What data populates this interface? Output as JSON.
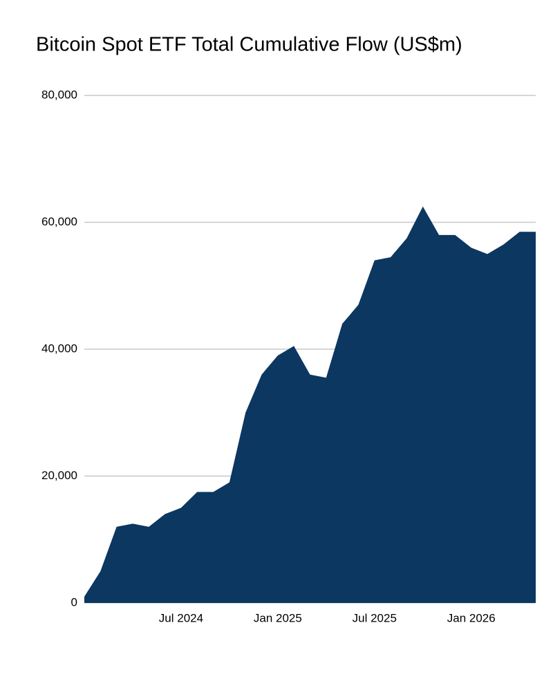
{
  "chart_data": {
    "type": "area",
    "title": "Bitcoin Spot ETF Total Cumulative Flow (US$m)",
    "color": "#0b3761",
    "grid": true,
    "x": [
      "2024-01",
      "2024-02",
      "2024-03",
      "2024-04",
      "2024-05",
      "2024-06",
      "2024-07",
      "2024-08",
      "2024-09",
      "2024-10",
      "2024-11",
      "2024-12",
      "2025-01",
      "2025-02",
      "2025-03",
      "2025-04",
      "2025-05",
      "2025-06",
      "2025-07",
      "2025-08",
      "2025-09",
      "2025-10",
      "2025-11",
      "2025-12",
      "2026-01",
      "2026-02",
      "2026-03",
      "2026-04",
      "2026-05"
    ],
    "values": [
      1000,
      5000,
      12000,
      12500,
      12000,
      14000,
      15000,
      17500,
      17500,
      19000,
      30000,
      36000,
      39000,
      40500,
      36000,
      35500,
      44000,
      47000,
      54000,
      54500,
      57500,
      62500,
      58000,
      58000,
      56000,
      55000,
      56500,
      58500,
      58500
    ],
    "xlim": [
      "2024-01",
      "2026-05"
    ],
    "xticks": [
      {
        "value": "2024-07",
        "label": "Jul 2024"
      },
      {
        "value": "2025-01",
        "label": "Jan 2025"
      },
      {
        "value": "2025-07",
        "label": "Jul 2025"
      },
      {
        "value": "2026-01",
        "label": "Jan 2026"
      }
    ],
    "ylim": [
      0,
      80000
    ],
    "yticks": [
      0,
      {
        "value": 20000,
        "label": "20,000"
      },
      {
        "value": 40000,
        "label": "40,000"
      },
      {
        "value": 60000,
        "label": "60,000"
      },
      {
        "value": 80000,
        "label": "80,000"
      }
    ]
  }
}
